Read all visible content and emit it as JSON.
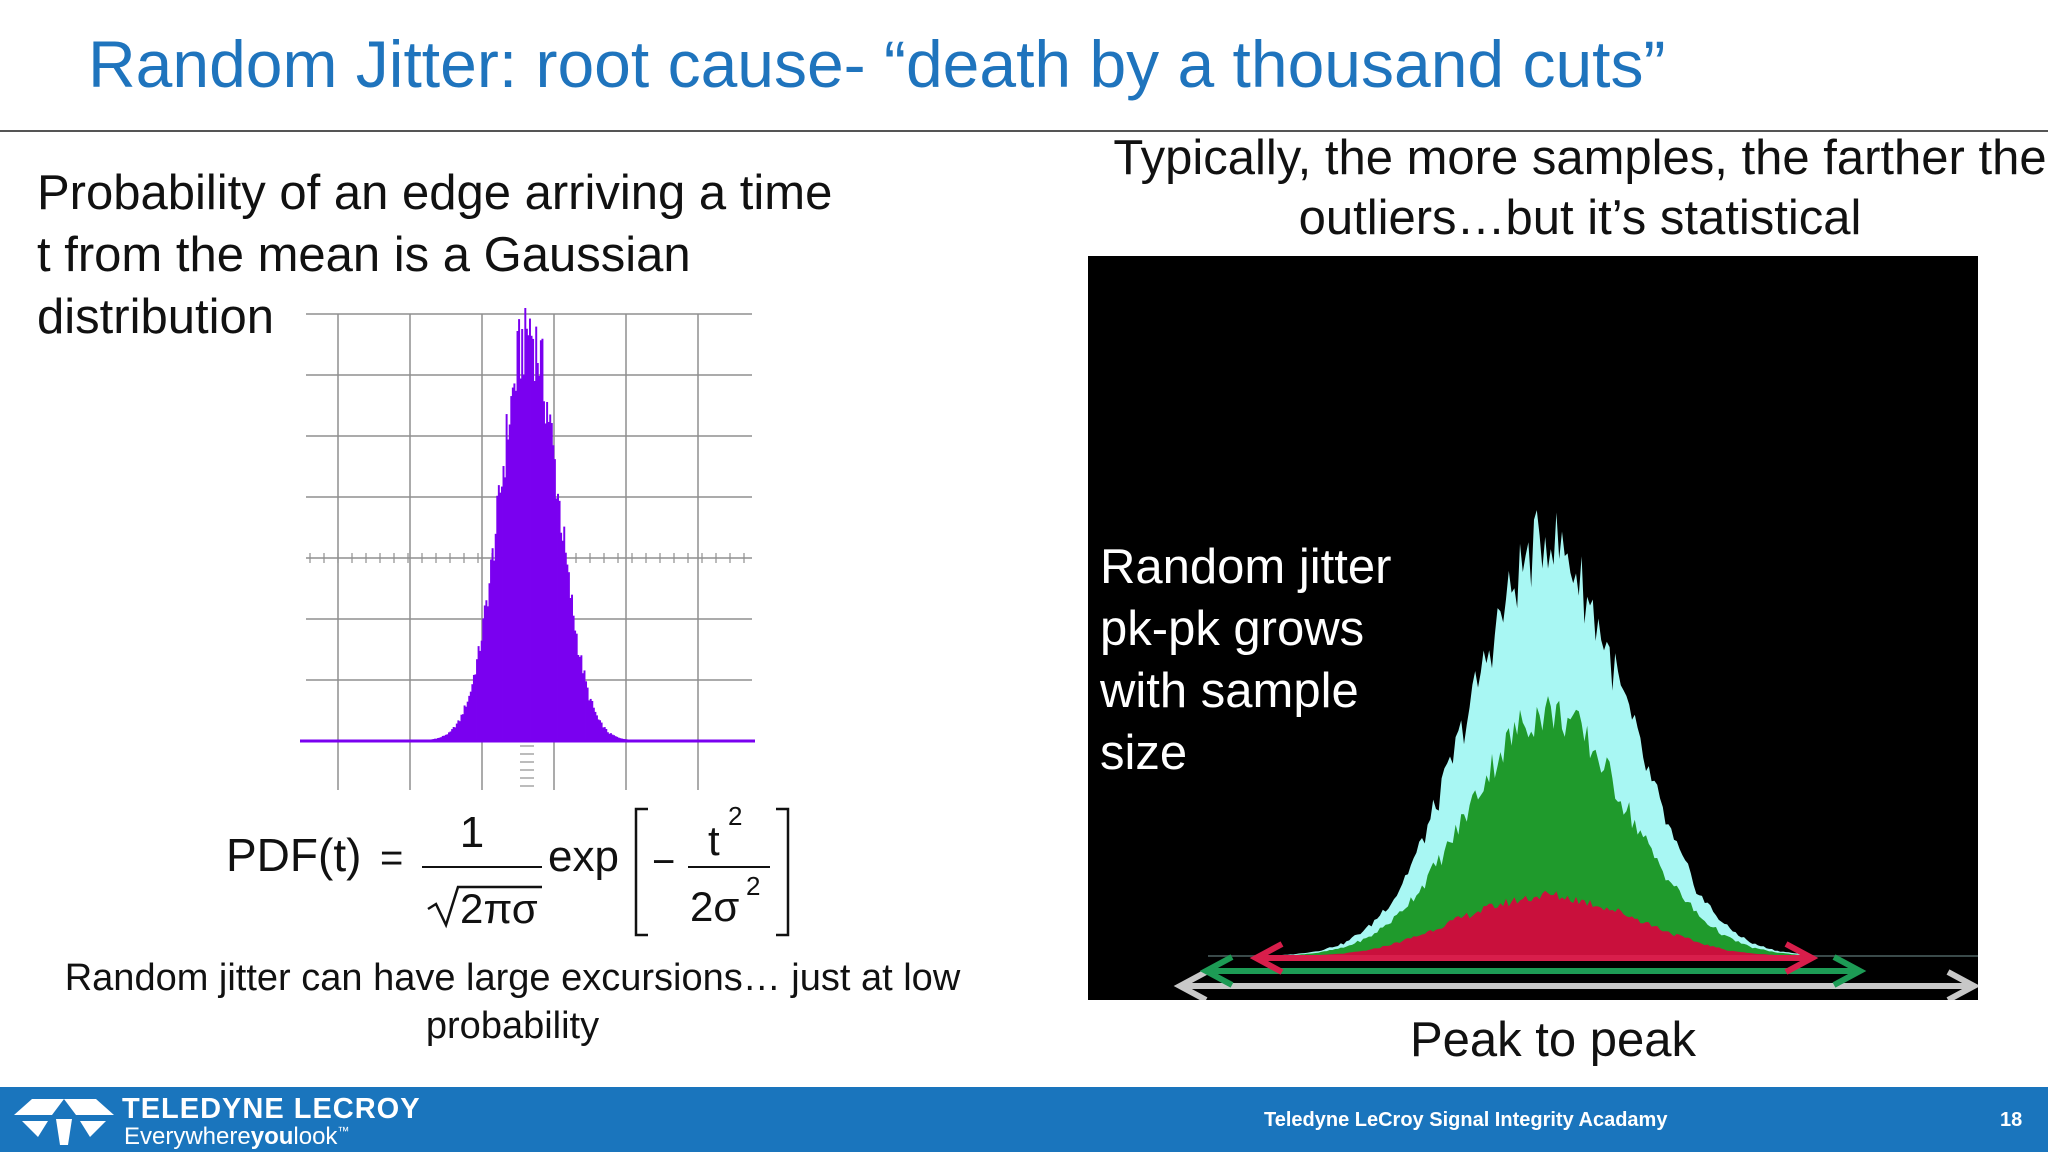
{
  "slide": {
    "title": "Random Jitter: root cause- “death by a thousand cuts”",
    "left_text": "Probability of an edge arriving a time t from the mean is a Gaussian distribution",
    "formula": {
      "lhs": "PDF(t)",
      "equals": "=",
      "numerator": "1",
      "denominator": "2πσ",
      "exp": "exp",
      "minus": "−",
      "exp_numerator_base": "t",
      "exp_numerator_power": "2",
      "exp_denominator_base": "2σ",
      "exp_denominator_power": "2"
    },
    "left_caption": "Random jitter can have large excursions… just at low probability",
    "right_heading": "Typically, the more samples, the farther the outliers…but it’s statistical",
    "overlay_text": "Random jitter pk-pk grows with sample size",
    "peak_label": "Peak to peak"
  },
  "footer": {
    "brand_name": "TELEDYNE LECROY",
    "tagline_pre": "Everywhere",
    "tagline_bold": "you",
    "tagline_post": "look",
    "tagline_mark": "™",
    "center_text": "Teledyne LeCroy Signal Integrity Acadamy",
    "page_number": "18"
  },
  "colors": {
    "title": "#1f74bd",
    "footer": "#1a75bd",
    "gaussian": "#7a00f0",
    "cyan": "#a8f7f3",
    "green": "#1f9a2c",
    "red": "#c9103c",
    "arrow_red": "#d81e4b",
    "arrow_green": "#1d9b55",
    "arrow_gray": "#c8c8c8"
  },
  "chart_data": [
    {
      "type": "bar",
      "title": "",
      "series": [
        {
          "values": [
            0.001,
            0.003,
            0.008,
            0.02,
            0.05,
            0.11,
            0.22,
            0.38,
            0.58,
            0.78,
            0.93,
            1.0,
            0.93,
            0.78,
            0.58,
            0.38,
            0.22,
            0.11,
            0.05,
            0.02,
            0.008,
            0.003,
            0.001
          ]
        }
      ],
      "grid": true
    },
    {
      "type": "area",
      "title": "",
      "series": [
        {
          "color": "cyan",
          "values": [
            0.0,
            0.004,
            0.012,
            0.03,
            0.07,
            0.14,
            0.26,
            0.42,
            0.6,
            0.78,
            0.92,
            1.0,
            0.92,
            0.78,
            0.6,
            0.42,
            0.26,
            0.14,
            0.07,
            0.03,
            0.012,
            0.004,
            0.0
          ]
        },
        {
          "color": "green",
          "values": [
            0.0,
            0.002,
            0.008,
            0.02,
            0.045,
            0.09,
            0.16,
            0.25,
            0.36,
            0.47,
            0.55,
            0.58,
            0.55,
            0.47,
            0.36,
            0.25,
            0.16,
            0.09,
            0.045,
            0.02,
            0.008,
            0.002,
            0.0
          ]
        },
        {
          "color": "red",
          "values": [
            0.0,
            0.0,
            0.002,
            0.006,
            0.014,
            0.03,
            0.05,
            0.075,
            0.1,
            0.12,
            0.135,
            0.145,
            0.135,
            0.12,
            0.1,
            0.075,
            0.05,
            0.03,
            0.014,
            0.006,
            0.002,
            0.0,
            0.0
          ]
        }
      ],
      "legend": "none",
      "grid": false
    }
  ]
}
